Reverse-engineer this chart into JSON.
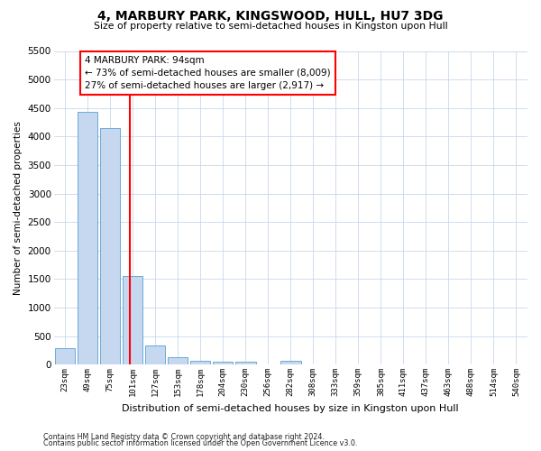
{
  "title": "4, MARBURY PARK, KINGSWOOD, HULL, HU7 3DG",
  "subtitle": "Size of property relative to semi-detached houses in Kingston upon Hull",
  "xlabel": "Distribution of semi-detached houses by size in Kingston upon Hull",
  "ylabel": "Number of semi-detached properties",
  "footnote1": "Contains HM Land Registry data © Crown copyright and database right 2024.",
  "footnote2": "Contains public sector information licensed under the Open Government Licence v3.0.",
  "bar_labels": [
    "23sqm",
    "49sqm",
    "75sqm",
    "101sqm",
    "127sqm",
    "153sqm",
    "178sqm",
    "204sqm",
    "230sqm",
    "256sqm",
    "282sqm",
    "308sqm",
    "333sqm",
    "359sqm",
    "385sqm",
    "411sqm",
    "437sqm",
    "463sqm",
    "488sqm",
    "514sqm",
    "540sqm"
  ],
  "bar_values": [
    290,
    4430,
    4150,
    1550,
    340,
    125,
    70,
    55,
    45,
    0,
    60,
    0,
    0,
    0,
    0,
    0,
    0,
    0,
    0,
    0,
    0
  ],
  "bar_color": "#c5d8f0",
  "bar_edgecolor": "#6aaad4",
  "ylim": [
    0,
    5500
  ],
  "yticks": [
    0,
    500,
    1000,
    1500,
    2000,
    2500,
    3000,
    3500,
    4000,
    4500,
    5000,
    5500
  ],
  "property_size": 94,
  "property_label": "4 MARBURY PARK: 94sqm",
  "pct_smaller": 73,
  "count_smaller": 8009,
  "pct_larger": 27,
  "count_larger": 2917,
  "vline_x_index": 2.88,
  "background_color": "#ffffff",
  "grid_color": "#c8d8ec"
}
